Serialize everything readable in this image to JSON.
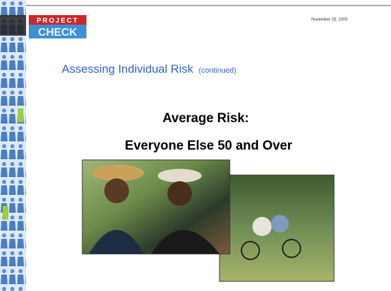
{
  "logo": {
    "top": "PROJECT",
    "bottom": "CHECK"
  },
  "date": "November 29, 2005",
  "title": {
    "main": "Assessing Individual Risk",
    "note": "(continued)"
  },
  "heading": {
    "line1": "Average Risk:",
    "line2": "Everyone Else 50 and Over"
  }
}
